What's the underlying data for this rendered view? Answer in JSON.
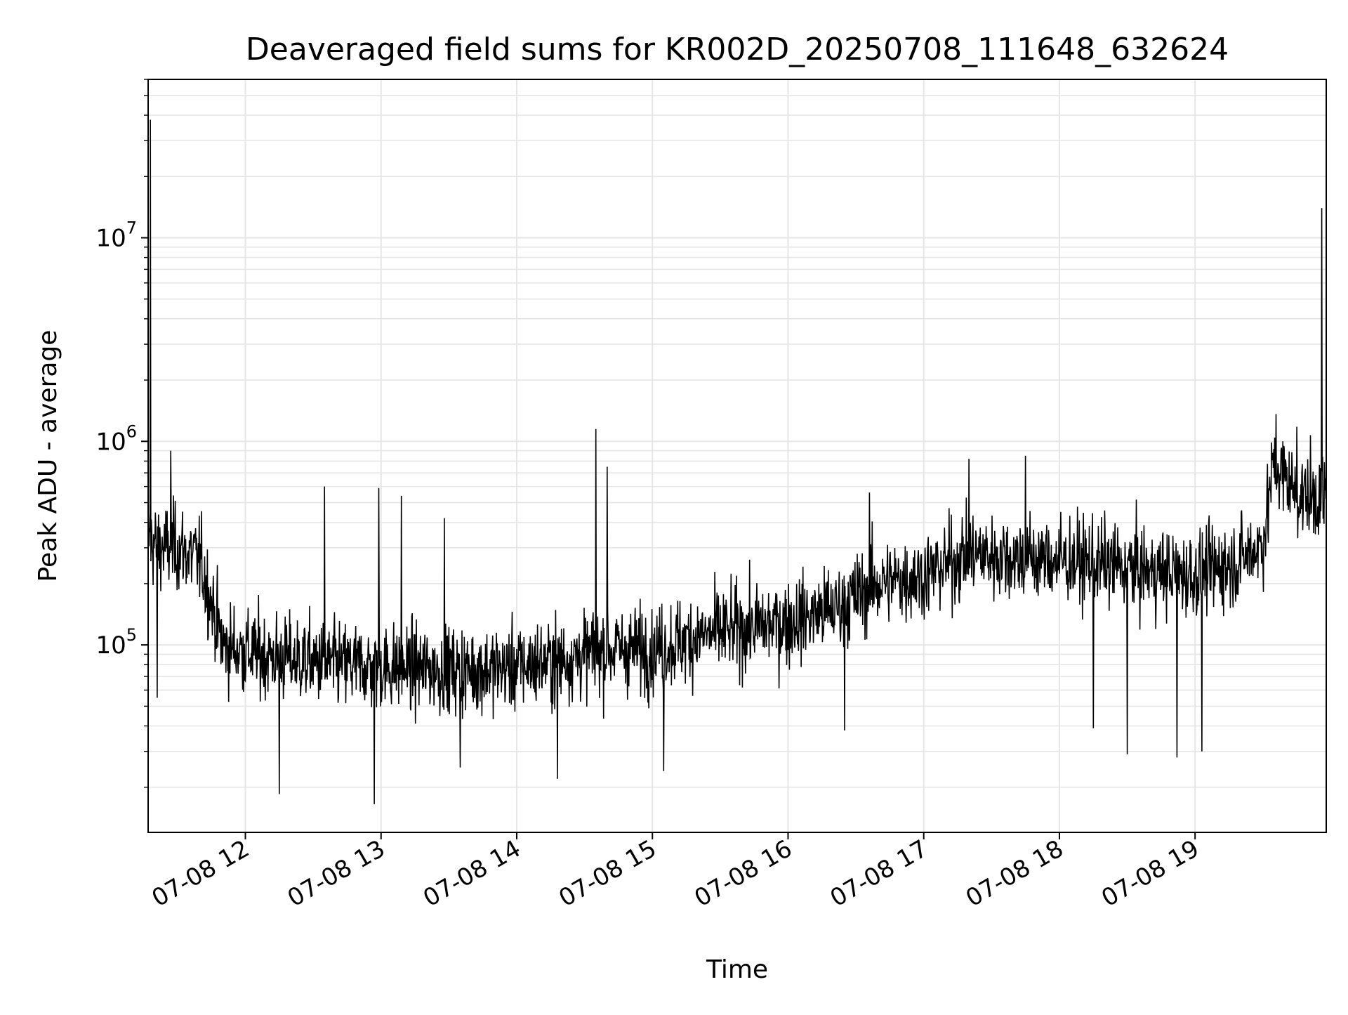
{
  "chart_data": {
    "type": "line",
    "title": "Deaveraged field sums for KR002D_20250708_111648_632624",
    "xlabel": "Time",
    "ylabel": "Peak ADU - average",
    "yscale": "log",
    "grid": true,
    "legend": "none",
    "xlim": [
      "2025-07-08 11:17",
      "2025-07-08 19:58"
    ],
    "ylim": [
      12000,
      60000000
    ],
    "x_ticks": [
      {
        "value": "2025-07-08 12:00",
        "label": "07-08 12"
      },
      {
        "value": "2025-07-08 13:00",
        "label": "07-08 13"
      },
      {
        "value": "2025-07-08 14:00",
        "label": "07-08 14"
      },
      {
        "value": "2025-07-08 15:00",
        "label": "07-08 15"
      },
      {
        "value": "2025-07-08 16:00",
        "label": "07-08 16"
      },
      {
        "value": "2025-07-08 17:00",
        "label": "07-08 17"
      },
      {
        "value": "2025-07-08 18:00",
        "label": "07-08 18"
      },
      {
        "value": "2025-07-08 19:00",
        "label": "07-08 19"
      }
    ],
    "y_ticks": [
      {
        "value": 100000,
        "base": "10",
        "exp": "5"
      },
      {
        "value": 1000000,
        "base": "10",
        "exp": "6"
      },
      {
        "value": 10000000,
        "base": "10",
        "exp": "7"
      }
    ],
    "line_color": "#000000",
    "grid_color": "#e6e6e6",
    "series": [
      {
        "x": [
          "2025-07-08 11:17",
          "2025-07-08 11:22",
          "2025-07-08 11:30",
          "2025-07-08 11:40",
          "2025-07-08 11:50",
          "2025-07-08 12:05",
          "2025-07-08 12:20",
          "2025-07-08 12:40",
          "2025-07-08 13:00",
          "2025-07-08 13:20",
          "2025-07-08 13:40",
          "2025-07-08 14:00",
          "2025-07-08 14:20",
          "2025-07-08 14:40",
          "2025-07-08 15:00",
          "2025-07-08 15:20",
          "2025-07-08 15:40",
          "2025-07-08 16:00",
          "2025-07-08 16:20",
          "2025-07-08 16:40",
          "2025-07-08 17:00",
          "2025-07-08 17:20",
          "2025-07-08 17:40",
          "2025-07-08 18:00",
          "2025-07-08 18:20",
          "2025-07-08 18:40",
          "2025-07-08 19:00",
          "2025-07-08 19:20",
          "2025-07-08 19:30",
          "2025-07-08 19:35",
          "2025-07-08 19:45",
          "2025-07-08 19:58"
        ],
        "y": [
          330000,
          300000,
          300000,
          260000,
          100000,
          90000,
          85000,
          80000,
          78000,
          76000,
          75000,
          78000,
          85000,
          95000,
          95000,
          110000,
          120000,
          130000,
          150000,
          200000,
          220000,
          280000,
          270000,
          260000,
          250000,
          230000,
          220000,
          260000,
          320000,
          800000,
          550000,
          520000
        ],
        "noise_decades": 0.18,
        "spikes": [
          {
            "x": "2025-07-08 11:18",
            "y": 38000000
          },
          {
            "x": "2025-07-08 11:27",
            "y": 900000
          },
          {
            "x": "2025-07-08 12:35",
            "y": 600000
          },
          {
            "x": "2025-07-08 12:59",
            "y": 590000
          },
          {
            "x": "2025-07-08 13:09",
            "y": 540000
          },
          {
            "x": "2025-07-08 13:28",
            "y": 420000
          },
          {
            "x": "2025-07-08 14:35",
            "y": 1150000
          },
          {
            "x": "2025-07-08 14:40",
            "y": 750000
          },
          {
            "x": "2025-07-08 16:36",
            "y": 560000
          },
          {
            "x": "2025-07-08 17:20",
            "y": 820000
          },
          {
            "x": "2025-07-08 17:45",
            "y": 850000
          },
          {
            "x": "2025-07-08 19:45",
            "y": 1180000
          },
          {
            "x": "2025-07-08 19:56",
            "y": 14000000
          }
        ],
        "dips": [
          {
            "x": "2025-07-08 11:21",
            "y": 55000
          },
          {
            "x": "2025-07-08 12:15",
            "y": 18500
          },
          {
            "x": "2025-07-08 12:57",
            "y": 16500
          },
          {
            "x": "2025-07-08 13:35",
            "y": 25000
          },
          {
            "x": "2025-07-08 14:18",
            "y": 22000
          },
          {
            "x": "2025-07-08 15:05",
            "y": 24000
          },
          {
            "x": "2025-07-08 16:25",
            "y": 38000
          },
          {
            "x": "2025-07-08 18:15",
            "y": 39000
          },
          {
            "x": "2025-07-08 18:30",
            "y": 29000
          },
          {
            "x": "2025-07-08 18:52",
            "y": 28000
          },
          {
            "x": "2025-07-08 19:03",
            "y": 30000
          }
        ]
      }
    ]
  }
}
